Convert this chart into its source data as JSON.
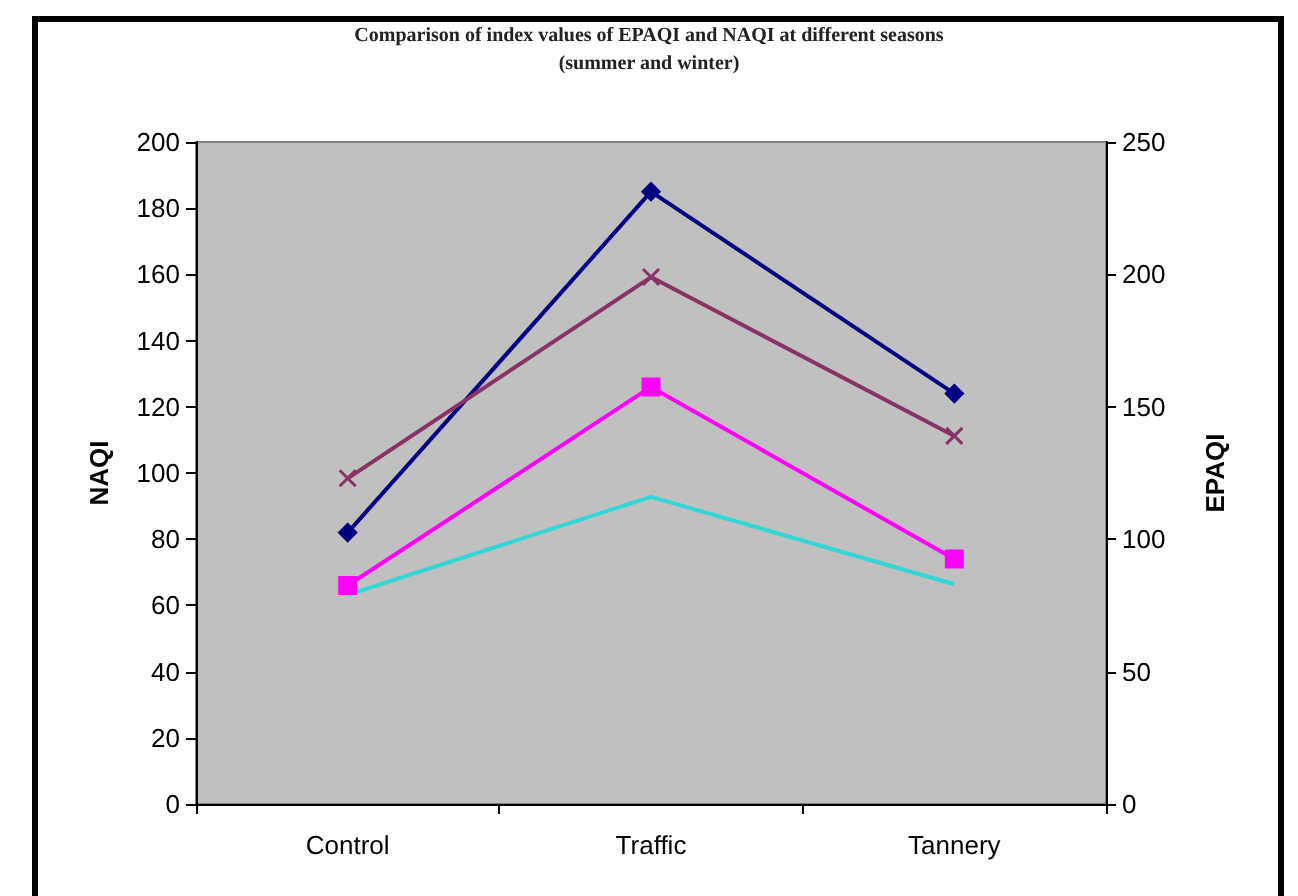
{
  "chart_data": {
    "type": "line",
    "title": "Comparison of index values of EPAQI and NAQI at different seasons",
    "subtitle": "(summer and winter)",
    "categories": [
      "Control",
      "Traffic",
      "Tannery"
    ],
    "series": [
      {
        "color": "#000080",
        "values": [
          82,
          185,
          124
        ],
        "marker": "diamond"
      },
      {
        "color": "#ff00ff",
        "values": [
          66,
          126,
          74
        ],
        "marker": "square"
      },
      {
        "color": "#883366",
        "values": [
          123,
          199,
          139
        ],
        "marker": "cross",
        "axis": "y2"
      },
      {
        "color": "#33d6d6",
        "values": [
          79,
          116,
          83
        ],
        "marker": "none",
        "axis": "y2"
      }
    ],
    "ylabel": "NAQI",
    "y2label": "EPAQI",
    "ylim": [
      0,
      200
    ],
    "yticks": [
      0,
      20,
      40,
      60,
      80,
      100,
      120,
      140,
      160,
      180,
      200
    ],
    "y2lim": [
      0,
      250
    ],
    "y2ticks": [
      0,
      50,
      100,
      150,
      200,
      250
    ],
    "grid": false,
    "line_style": "solid"
  }
}
